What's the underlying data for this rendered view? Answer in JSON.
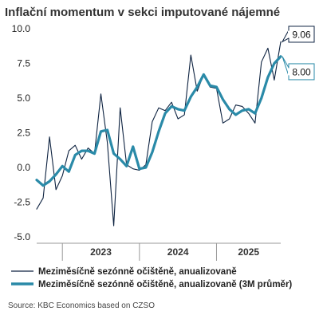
{
  "chart_data": {
    "type": "line",
    "title": "Inflační momentum v sekci imputované nájemné",
    "xlabel": "",
    "ylabel": "",
    "ylim": [
      -5,
      10
    ],
    "yticks": [
      10.0,
      7.5,
      5.0,
      2.5,
      0.0,
      -2.5,
      -5.0
    ],
    "ytick_labels": [
      "10.0",
      "7.5",
      "5.0",
      "2.5",
      "0.0",
      "-2.5",
      "-5.0"
    ],
    "x_start": "2022-09",
    "x_end": "2025-11",
    "year_labels": [
      "2023",
      "2024",
      "2025"
    ],
    "grid": false,
    "legend_position": "bottom",
    "series": [
      {
        "name": "Meziměsíčně sezónně očištěně, anualizovaně",
        "color": "#0d2240",
        "x": [
          "2022-09",
          "2022-10",
          "2022-11",
          "2022-12",
          "2023-01",
          "2023-02",
          "2023-03",
          "2023-04",
          "2023-05",
          "2023-06",
          "2023-07",
          "2023-08",
          "2023-09",
          "2023-10",
          "2023-11",
          "2023-12",
          "2024-01",
          "2024-02",
          "2024-03",
          "2024-04",
          "2024-05",
          "2024-06",
          "2024-07",
          "2024-08",
          "2024-09",
          "2024-10",
          "2024-11",
          "2024-12",
          "2025-01",
          "2025-02",
          "2025-03",
          "2025-04",
          "2025-05",
          "2025-06",
          "2025-07",
          "2025-08",
          "2025-09",
          "2025-10",
          "2025-11"
        ],
        "values": [
          -3.0,
          -2.2,
          2.2,
          -1.6,
          -0.6,
          1.2,
          1.6,
          0.6,
          1.4,
          1.0,
          5.3,
          1.8,
          -4.2,
          4.3,
          0.2,
          -0.1,
          -0.2,
          0.2,
          3.3,
          4.3,
          4.1,
          4.7,
          3.5,
          3.8,
          8.1,
          5.5,
          6.7,
          5.8,
          5.7,
          3.2,
          3.5,
          4.5,
          4.4,
          3.9,
          3.2,
          7.6,
          8.6,
          6.3,
          9.06
        ]
      },
      {
        "name": "Meziměsíčně sezónně očištěně, anualizovaně (3M průměr)",
        "color": "#2a8aa8",
        "x": [
          "2022-09",
          "2022-10",
          "2022-11",
          "2022-12",
          "2023-01",
          "2023-02",
          "2023-03",
          "2023-04",
          "2023-05",
          "2023-06",
          "2023-07",
          "2023-08",
          "2023-09",
          "2023-10",
          "2023-11",
          "2023-12",
          "2024-01",
          "2024-02",
          "2024-03",
          "2024-04",
          "2024-05",
          "2024-06",
          "2024-07",
          "2024-08",
          "2024-09",
          "2024-10",
          "2024-11",
          "2024-12",
          "2025-01",
          "2025-02",
          "2025-03",
          "2025-04",
          "2025-05",
          "2025-06",
          "2025-07",
          "2025-08",
          "2025-09",
          "2025-10",
          "2025-11"
        ],
        "values": [
          -0.9,
          -1.3,
          -1.0,
          -0.5,
          0.1,
          -0.3,
          0.9,
          1.2,
          1.2,
          1.0,
          2.6,
          2.7,
          1.0,
          0.6,
          0.1,
          1.5,
          -0.1,
          0.0,
          1.1,
          2.6,
          3.9,
          4.4,
          4.2,
          4.1,
          5.1,
          5.8,
          6.7,
          5.9,
          5.8,
          4.9,
          4.2,
          3.8,
          4.1,
          4.2,
          3.9,
          5.0,
          6.5,
          7.5,
          8.0
        ]
      }
    ],
    "end_labels": [
      {
        "series": 0,
        "text": "9.06"
      },
      {
        "series": 1,
        "text": "8.00"
      }
    ]
  },
  "source": "Source: KBC Economics based on CZSO"
}
